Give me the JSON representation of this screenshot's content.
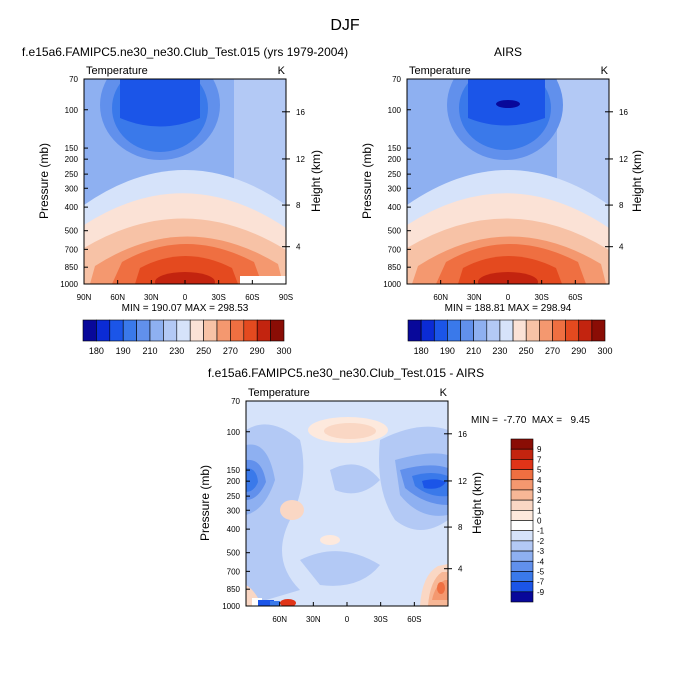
{
  "figure": {
    "title": "DJF"
  },
  "chart_data": [
    {
      "type": "heatmap",
      "title": "f.e15a6.FAMIPC5.ne30_ne30.Club_Test.015 (yrs 1979-2004)",
      "variable": "Temperature",
      "units": "K",
      "ylabel": "Pressure (mb)",
      "ylabel_right": "Height (km)",
      "x_ticks": [
        "90N",
        "60N",
        "30N",
        "0",
        "30S",
        "60S",
        "90S"
      ],
      "y_ticks": [
        "70",
        "100",
        "150",
        "200",
        "250",
        "300",
        "400",
        "500",
        "700",
        "850",
        "1000"
      ],
      "height_ticks": [
        "16",
        "12",
        "8",
        "4"
      ],
      "stats_text": "MIN = 190.07  MAX = 298.53",
      "colorbar_labels": [
        "180",
        "190",
        "210",
        "230",
        "250",
        "270",
        "290",
        "300"
      ]
    },
    {
      "type": "heatmap",
      "title": "AIRS",
      "variable": "Temperature",
      "units": "K",
      "ylabel": "Pressure (mb)",
      "ylabel_right": "Height (km)",
      "x_ticks": [
        "60N",
        "30N",
        "0",
        "30S",
        "60S"
      ],
      "y_ticks": [
        "70",
        "100",
        "150",
        "200",
        "250",
        "300",
        "400",
        "500",
        "700",
        "850",
        "1000"
      ],
      "height_ticks": [
        "16",
        "12",
        "8",
        "4"
      ],
      "stats_text": "MIN = 188.81  MAX = 298.94",
      "colorbar_labels": [
        "180",
        "190",
        "210",
        "230",
        "250",
        "270",
        "290",
        "300"
      ]
    },
    {
      "type": "heatmap",
      "title": "f.e15a6.FAMIPC5.ne30_ne30.Club_Test.015 - AIRS",
      "variable": "Temperature",
      "units": "K",
      "ylabel": "Pressure (mb)",
      "ylabel_right": "Height (km)",
      "x_ticks": [
        "60N",
        "30N",
        "0",
        "30S",
        "60S"
      ],
      "y_ticks": [
        "70",
        "100",
        "150",
        "200",
        "250",
        "300",
        "400",
        "500",
        "700",
        "850",
        "1000"
      ],
      "height_ticks": [
        "16",
        "12",
        "8",
        "4"
      ],
      "stats_text": "MIN =  -7.70  MAX =   9.45",
      "colorbar_labels": [
        "9",
        "7",
        "5",
        "4",
        "3",
        "2",
        "1",
        "0",
        "-1",
        "-2",
        "-3",
        "-4",
        "-5",
        "-7",
        "-9"
      ]
    }
  ],
  "colors": {
    "temperature_scale": [
      "#08089a",
      "#0b2bd5",
      "#1b55e8",
      "#3a79ea",
      "#6190ec",
      "#8eb0f1",
      "#b3c9f5",
      "#d6e3fa",
      "#fbe2d6",
      "#f7c2a6",
      "#f4986f",
      "#ef6f41",
      "#e44a1f",
      "#c3240f",
      "#8a0d05"
    ],
    "difference_scale": [
      "#8a0d05",
      "#c3240f",
      "#e03418",
      "#ef6f41",
      "#f4986f",
      "#f7b796",
      "#fad7c4",
      "#fde9dd",
      "#ffffff",
      "#d6e3fa",
      "#b3c9f5",
      "#8eb0f1",
      "#6190ec",
      "#3a79ea",
      "#1b55e8",
      "#08089a"
    ]
  }
}
